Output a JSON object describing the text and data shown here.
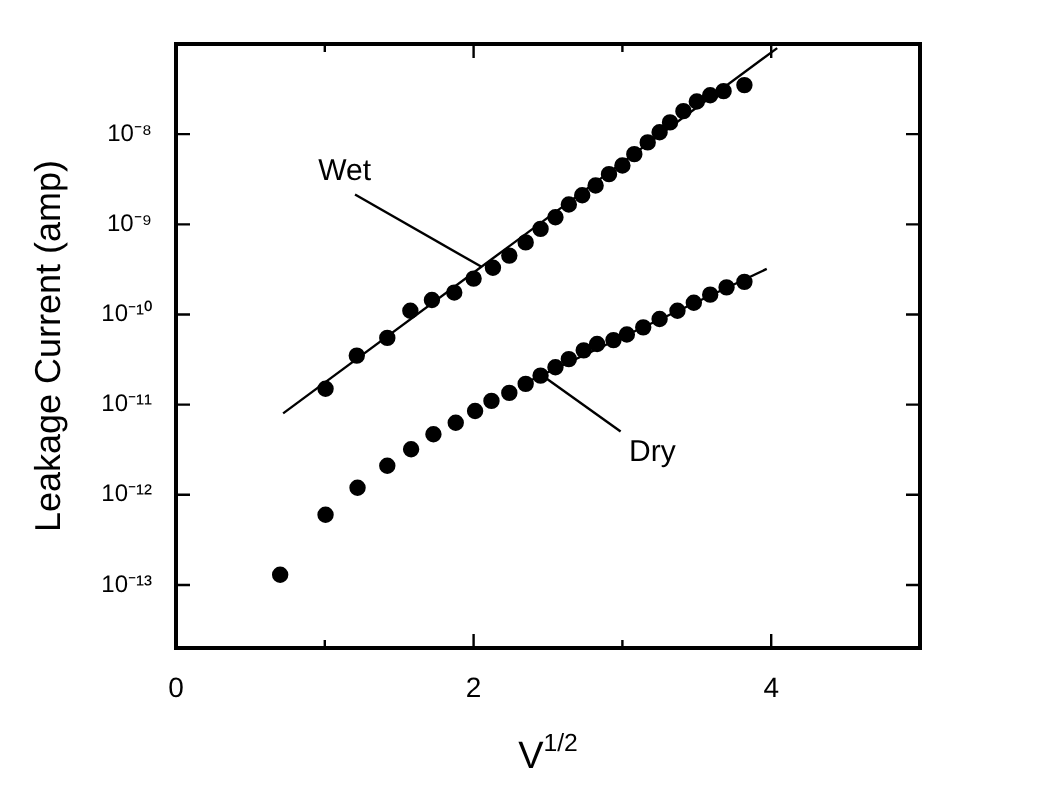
{
  "chart_data": {
    "type": "scatter",
    "xlabel": "V$^{1/2}$",
    "ylabel": "Leakage Current (amp)",
    "log": "y",
    "grid": false,
    "legend": false,
    "marker": "circle",
    "xlim": [
      0,
      5
    ],
    "xticks": [
      0,
      {
        "value": 1,
        "label": null
      },
      2,
      {
        "value": 3,
        "label": null
      },
      4,
      {
        "value": 5,
        "label": null
      }
    ],
    "ylim": [
      2e-14,
      1e-07
    ],
    "yticks": [
      {
        "value": 1e-13,
        "label": "10⁻¹³"
      },
      {
        "value": 1e-12,
        "label": "10⁻¹²"
      },
      {
        "value": 1e-11,
        "label": "10⁻¹¹"
      },
      {
        "value": 1e-10,
        "label": "10⁻¹⁰"
      },
      {
        "value": 1e-09,
        "label": "10⁻⁹"
      },
      {
        "value": 1e-08,
        "label": "10⁻⁸"
      }
    ],
    "series": [
      {
        "color": "#000000",
        "x": [
          1.005,
          1.215,
          1.42,
          1.575,
          1.72,
          1.87,
          2.0,
          2.13,
          2.24,
          2.35,
          2.45,
          2.55,
          2.64,
          2.73,
          2.82,
          2.91,
          3.0,
          3.08,
          3.17,
          3.25,
          3.32,
          3.41,
          3.5,
          3.59,
          3.68,
          3.82
        ],
        "values": [
          1.5e-11,
          3.5e-11,
          5.5e-11,
          1.1e-10,
          1.45e-10,
          1.75e-10,
          2.5e-10,
          3.3e-10,
          4.5e-10,
          6.3e-10,
          8.9e-10,
          1.2e-09,
          1.66e-09,
          2.1e-09,
          2.7e-09,
          3.6e-09,
          4.5e-09,
          6e-09,
          8.1e-09,
          1.05e-08,
          1.35e-08,
          1.8e-08,
          2.3e-08,
          2.7e-08,
          3e-08,
          3.5e-08
        ]
      },
      {
        "color": "#000000",
        "x": [
          0.7,
          1.005,
          1.22,
          1.42,
          1.58,
          1.73,
          1.88,
          2.01,
          2.12,
          2.24,
          2.35,
          2.45,
          2.55,
          2.64,
          2.74,
          2.83,
          2.94,
          3.03,
          3.14,
          3.25,
          3.37,
          3.48,
          3.59,
          3.7,
          3.82
        ],
        "values": [
          1.3e-13,
          6e-13,
          1.2e-12,
          2.1e-12,
          3.2e-12,
          4.7e-12,
          6.3e-12,
          8.5e-12,
          1.1e-11,
          1.35e-11,
          1.7e-11,
          2.1e-11,
          2.6e-11,
          3.2e-11,
          4e-11,
          4.7e-11,
          5.2e-11,
          6e-11,
          7.2e-11,
          8.9e-11,
          1.1e-10,
          1.35e-10,
          1.66e-10,
          2e-10,
          2.3e-10
        ]
      },
      {
        "type": "line",
        "color": "#000000",
        "marker": "none",
        "x": [
          0.72,
          4.04
        ],
        "values": [
          8e-12,
          9e-08
        ]
      },
      {
        "type": "line",
        "color": "#000000",
        "marker": "none",
        "x": [
          2.3,
          3.97
        ],
        "values": [
          1.6e-11,
          3.2e-10
        ]
      }
    ],
    "annotations": [
      {
        "text": "Wet",
        "x": 2.05,
        "y": 3.4e-10
      },
      {
        "text": "Dry",
        "x": 2.48,
        "y": 2e-11
      }
    ]
  }
}
